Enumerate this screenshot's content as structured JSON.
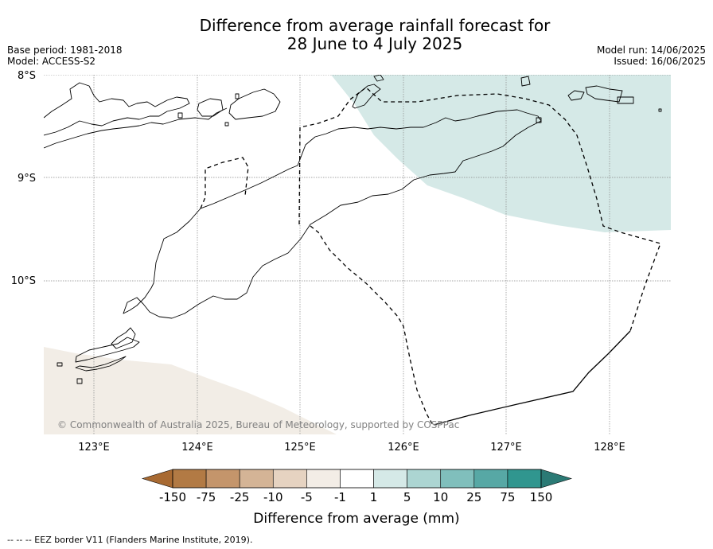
{
  "title_line1": "Difference from average rainfall forecast for",
  "title_line2": "28 June to 4 July 2025",
  "base_period": "Base period: 1981-2018",
  "model": "Model: ACCESS-S2",
  "model_run": "Model run: 14/06/2025",
  "issued": "Issued: 16/06/2025",
  "map": {
    "lat_labels": [
      "8°S",
      "9°S",
      "10°S"
    ],
    "lon_labels": [
      "123°E",
      "124°E",
      "125°E",
      "126°E",
      "127°E",
      "128°E"
    ],
    "copyright": "© Commonwealth of Australia 2025, Bureau of Meteorology, supported by COSPPac",
    "colors": {
      "wetter_shade": "#d5e9e7",
      "drier_shade": "#f2ede6",
      "coastline": "#000000",
      "gridline": "#888888"
    }
  },
  "colorbar": {
    "title": "Difference from average (mm)",
    "tick_labels": [
      "-150",
      "-75",
      "-25",
      "-10",
      "-5",
      "-1",
      "1",
      "5",
      "10",
      "25",
      "75",
      "150"
    ],
    "colors": [
      "#a86a32",
      "#b27a44",
      "#c4956b",
      "#d4b496",
      "#e6d3c1",
      "#f3ede6",
      "#ffffff",
      "#d5e9e7",
      "#acd5d2",
      "#80bfbc",
      "#57a8a5",
      "#30968f",
      "#2b7a75"
    ]
  },
  "footnote": "--  --  -- EEZ border V11 (Flanders Marine Institute, 2019)."
}
